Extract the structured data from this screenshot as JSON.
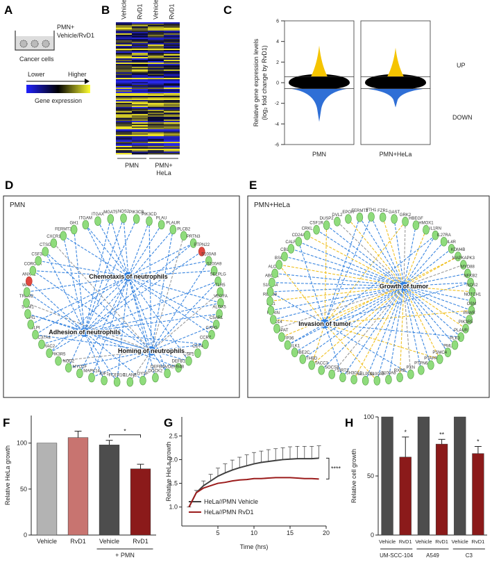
{
  "panel_a": {
    "letter": "A",
    "medium_label": [
      "PMN+",
      "Vehicle/RvD1"
    ],
    "cells_label": "Cancer cells",
    "scale_low": "Lower",
    "scale_high": "Higher",
    "scale_title": "Gene expression"
  },
  "panel_b": {
    "letter": "B",
    "columns": [
      "Vehicle",
      "RvD1",
      "Vehicle",
      "RvD1"
    ],
    "groups": [
      [
        "PMN"
      ],
      [
        "PMN+",
        "HeLa"
      ]
    ]
  },
  "panel_d": {
    "letter": "D",
    "title": "PMN",
    "hubs": [
      "Chemotaxis of neutrophils",
      "Adhesion of neutrophils",
      "Homing of neutrophils"
    ],
    "nodes": [
      "NOS2",
      "PIK3CB",
      "PIK3CD",
      "PLAU",
      "PLAUR",
      "PLCB2",
      "PRTN3",
      "PTPN22",
      "S100A8",
      "S100A9",
      "SELPLG",
      "TLR5",
      "VEGFA",
      "ALOX5",
      "C5AR1",
      "CAPG",
      "CCR7",
      "CD74",
      "CSF1",
      "DEFB1",
      "DEFB4A/DEFB4B",
      "DOCK2",
      "DYSF",
      "ELANE",
      "FCER1G",
      "IGF1",
      "MAPK14",
      "MYO1F",
      "NOD2",
      "PIK3R5",
      "RAC2",
      "SLC37A4",
      "SLPI",
      "SPI1",
      "STIM1",
      "TREM2",
      "WAS",
      "ANXA1",
      "CORO1A",
      "CSF3R",
      "CTSG",
      "CXCR1",
      "FERMT3",
      "GH1",
      "ITGAM",
      "ITGAX",
      "MGAT5"
    ],
    "highlighted": [
      7,
      37
    ]
  },
  "panel_e": {
    "letter": "E",
    "title": "PMN+HeLa",
    "hubs": [
      "Growth of tumor",
      "Invasion of tumor"
    ],
    "nodes": [
      "FTH1",
      "FZR1",
      "GAST",
      "GRK2",
      "HBEGF",
      "HMOX1",
      "IL1RN",
      "IL27RA",
      "IL4R",
      "KDM4B",
      "MAPKAPK3",
      "MYD88",
      "NFKB2",
      "NOS2",
      "NOTCH1",
      "OSM",
      "PAWR",
      "PIK3R5",
      "PLAUR",
      "PLK3",
      "PML",
      "PSMC4",
      "PTAFR",
      "PTPN6",
      "PXN",
      "RXRB",
      "S100A8",
      "S100A9",
      "SELPLG",
      "SH3GL1",
      "SIRT3",
      "SOCS3",
      "TACC3",
      "THBD",
      "UBE2C",
      "ULK1",
      "ZFP36",
      "ZGPAT",
      "CD14",
      "FURIN",
      "GH1",
      "RBM38",
      "S100A4",
      "ABCC1",
      "ALOX5",
      "BSG",
      "CBL",
      "CALR",
      "CD24A",
      "CRKL",
      "CSF1R",
      "DUSP2",
      "DVL2",
      "EPOR",
      "FERMT3"
    ]
  },
  "chart_data": [
    {
      "type": "strip",
      "letter": "C",
      "y_label": [
        "Relative gene expression levels",
        "(log₂ fold change  by RvD1)"
      ],
      "categories": [
        "PMN",
        "PMN+HeLa"
      ],
      "ylim": [
        -6,
        6
      ],
      "yticks": [
        -6,
        -4,
        -2,
        0,
        2,
        4,
        6
      ],
      "thresholds": [
        0.58,
        -0.58
      ],
      "max": [
        3.6,
        3.4
      ],
      "min": [
        -3.8,
        -2.4
      ],
      "up_label": "UP",
      "down_label": "DOWN",
      "colors": {
        "up": "#f5c400",
        "mid": "#000000",
        "down": "#2f6fd6"
      }
    },
    {
      "type": "bar",
      "letter": "F",
      "y_label": "Relative HeLa growth",
      "categories": [
        "Vehicle",
        "RvD1",
        "Vehicle",
        "RvD1"
      ],
      "values": [
        100,
        106,
        98,
        72
      ],
      "errors": [
        0,
        7,
        5,
        5
      ],
      "colors": [
        "#b3b3b3",
        "#c87470",
        "#4d4d4d",
        "#8b1a1a"
      ],
      "ylim": [
        0,
        130
      ],
      "yticks": [
        0,
        50,
        100
      ],
      "group_label": "+ PMN",
      "significance": "*"
    },
    {
      "type": "line",
      "letter": "G",
      "x_label": "Time (hrs)",
      "y_label": "Relative HeLa growth",
      "x": [
        1,
        2,
        3,
        4,
        5,
        6,
        7,
        8,
        9,
        10,
        11,
        12,
        13,
        14,
        15,
        16,
        17,
        18,
        19
      ],
      "series": [
        {
          "name": "HeLa//PMN Vehicle",
          "color": "#404040",
          "values": [
            1.0,
            1.3,
            1.45,
            1.55,
            1.65,
            1.72,
            1.78,
            1.83,
            1.87,
            1.91,
            1.94,
            1.96,
            1.98,
            2.0,
            2.01,
            2.02,
            2.02,
            2.02,
            2.03
          ],
          "errors": [
            0,
            0.05,
            0.1,
            0.14,
            0.17,
            0.19,
            0.21,
            0.22,
            0.23,
            0.24,
            0.24,
            0.25,
            0.25,
            0.25,
            0.26,
            0.26,
            0.26,
            0.26,
            0.26
          ]
        },
        {
          "name": "HeLa//PMN RvD1",
          "color": "#9b1b1b",
          "values": [
            1.0,
            1.3,
            1.4,
            1.45,
            1.5,
            1.52,
            1.55,
            1.57,
            1.58,
            1.6,
            1.6,
            1.61,
            1.62,
            1.62,
            1.62,
            1.61,
            1.6,
            1.6,
            1.59
          ]
        }
      ],
      "xlim": [
        0,
        20
      ],
      "xticks": [
        5,
        10,
        15,
        20
      ],
      "ylim": [
        0.6,
        2.9
      ],
      "yticks": [
        {
          "value": 1,
          "label": "1.0"
        },
        1.5,
        {
          "value": 2,
          "label": "2.0"
        },
        2.5
      ],
      "significance": "****"
    },
    {
      "type": "bar",
      "letter": "H",
      "y_label": "Relative cell growth",
      "categories": [
        "Vehicle",
        "RvD1",
        "Vehicle",
        "RvD1",
        "Vehicle",
        "RvD1"
      ],
      "values": [
        100,
        66,
        100,
        77,
        100,
        69
      ],
      "errors": [
        0,
        17,
        0,
        4,
        0,
        6
      ],
      "colors": [
        "#4d4d4d",
        "#8b1a1a",
        "#4d4d4d",
        "#8b1a1a",
        "#4d4d4d",
        "#8b1a1a"
      ],
      "ylim": [
        0,
        100
      ],
      "yticks": [
        0,
        50,
        100
      ],
      "groups": [
        "UM-SCC-104",
        "A549",
        "C3"
      ],
      "significance": [
        "*",
        "**",
        "*"
      ]
    }
  ]
}
